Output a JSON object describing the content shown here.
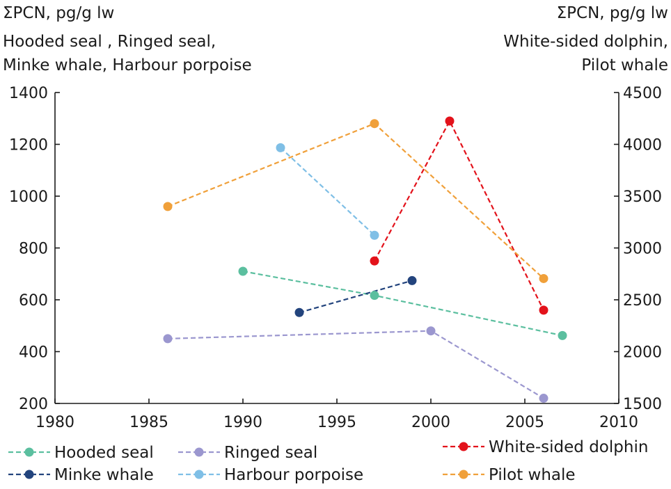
{
  "chart_data": {
    "type": "line",
    "left_axis": {
      "title_lines": [
        "ΣPCN, pg/g lw",
        "Hooded seal , Ringed seal,",
        "Minke whale, Harbour porpoise"
      ],
      "ylim": [
        200,
        1400
      ],
      "ticks": [
        "200",
        "400",
        "600",
        "800",
        "1000",
        "1200",
        "1400"
      ]
    },
    "right_axis": {
      "title_lines": [
        "ΣPCN, pg/g lw",
        "White-sided dolphin,",
        "Pilot whale"
      ],
      "ylim": [
        1500,
        4500
      ],
      "ticks": [
        "1500",
        "2000",
        "2500",
        "3000",
        "3500",
        "4000",
        "4500"
      ]
    },
    "x_axis": {
      "xlim": [
        1980,
        2010
      ],
      "ticks": [
        "1980",
        "1985",
        "1990",
        "1995",
        "2000",
        "2005",
        "2010"
      ]
    },
    "series": [
      {
        "name": "Hooded seal",
        "axis": "left",
        "color": "#5bbf9f",
        "x": [
          1990,
          1997,
          2007
        ],
        "y": [
          710,
          617,
          462
        ]
      },
      {
        "name": "Ringed seal",
        "axis": "left",
        "color": "#9b97cf",
        "x": [
          1986,
          2000,
          2006
        ],
        "y": [
          450,
          480,
          220
        ]
      },
      {
        "name": "Minke whale",
        "axis": "left",
        "color": "#23447d",
        "x": [
          1993,
          1999
        ],
        "y": [
          551,
          674
        ]
      },
      {
        "name": "Harbour porpoise",
        "axis": "left",
        "color": "#7fbfe6",
        "x": [
          1992,
          1997
        ],
        "y": [
          1187,
          849
        ]
      },
      {
        "name": "White-sided dolphin",
        "axis": "right",
        "color": "#e3121b",
        "x": [
          1997,
          2001,
          2006
        ],
        "y": [
          2875,
          4225,
          2400
        ]
      },
      {
        "name": "Pilot whale",
        "axis": "right",
        "color": "#f0a03a",
        "x": [
          1986,
          1997,
          2006
        ],
        "y": [
          3400,
          4200,
          2705
        ]
      }
    ]
  }
}
